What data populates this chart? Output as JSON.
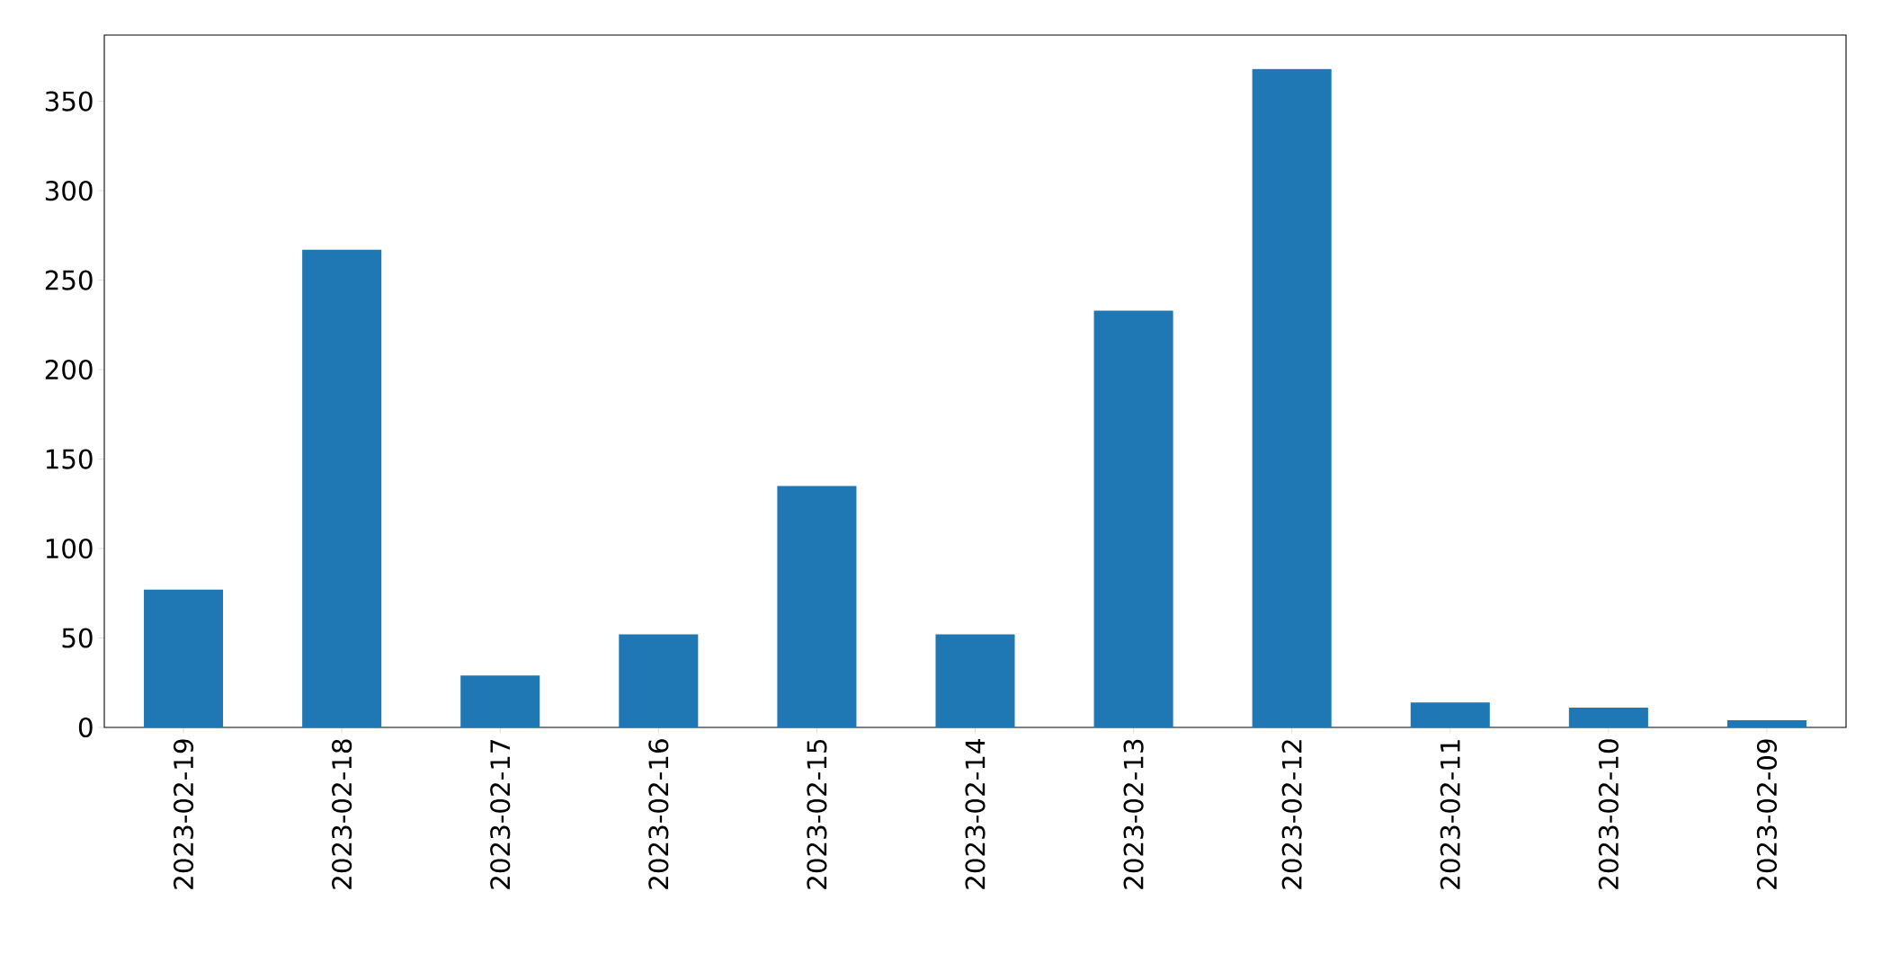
{
  "chart_data": {
    "type": "bar",
    "categories": [
      "2023-02-19",
      "2023-02-18",
      "2023-02-17",
      "2023-02-16",
      "2023-02-15",
      "2023-02-14",
      "2023-02-13",
      "2023-02-12",
      "2023-02-11",
      "2023-02-10",
      "2023-02-09"
    ],
    "values": [
      77,
      267,
      29,
      52,
      135,
      52,
      233,
      368,
      14,
      11,
      4
    ],
    "color": "#1f77b4",
    "ylim": [
      0,
      387
    ],
    "yticks": [
      0,
      50,
      100,
      150,
      200,
      250,
      300,
      350
    ],
    "grid": false
  }
}
